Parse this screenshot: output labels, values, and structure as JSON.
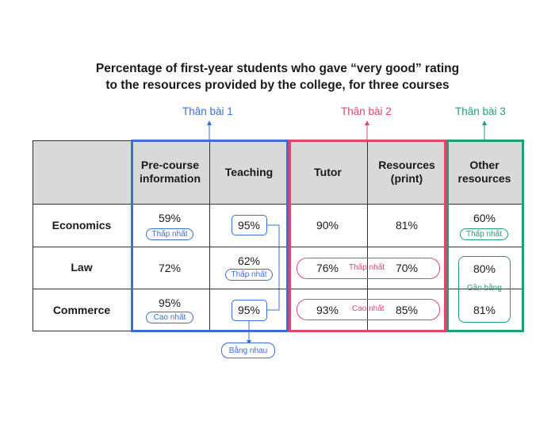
{
  "title_line1": "Percentage of first-year students who gave “very good” rating",
  "title_line2": "to the resources provided by the college, for three courses",
  "sections": {
    "body1": "Thân bài 1",
    "body2": "Thân bài 2",
    "body3": "Thân bài 3"
  },
  "columns": [
    "Pre-course information",
    "Teaching",
    "Tutor",
    "Resources (print)",
    "Other resources"
  ],
  "columns_display": [
    "Pre-course\ninformation",
    "Teaching",
    "Tutor",
    "Resources\n(print)",
    "Other\nresources"
  ],
  "rows": [
    "Economics",
    "Law",
    "Commerce"
  ],
  "values": {
    "economics": [
      "59%",
      "95%",
      "90%",
      "81%",
      "60%"
    ],
    "law": [
      "72%",
      "62%",
      "76%",
      "70%",
      "80%"
    ],
    "commerce": [
      "95%",
      "95%",
      "93%",
      "85%",
      "81%"
    ]
  },
  "labels": {
    "lowest": "Thấp nhất",
    "highest": "Cao nhất",
    "equal": "Bằng nhau",
    "nearly_equal": "Gần bằng"
  },
  "colors": {
    "blue": "#3b6fd4",
    "pink": "#e0476a",
    "green": "#1f9e78",
    "header_bg": "#d9d9d9"
  }
}
